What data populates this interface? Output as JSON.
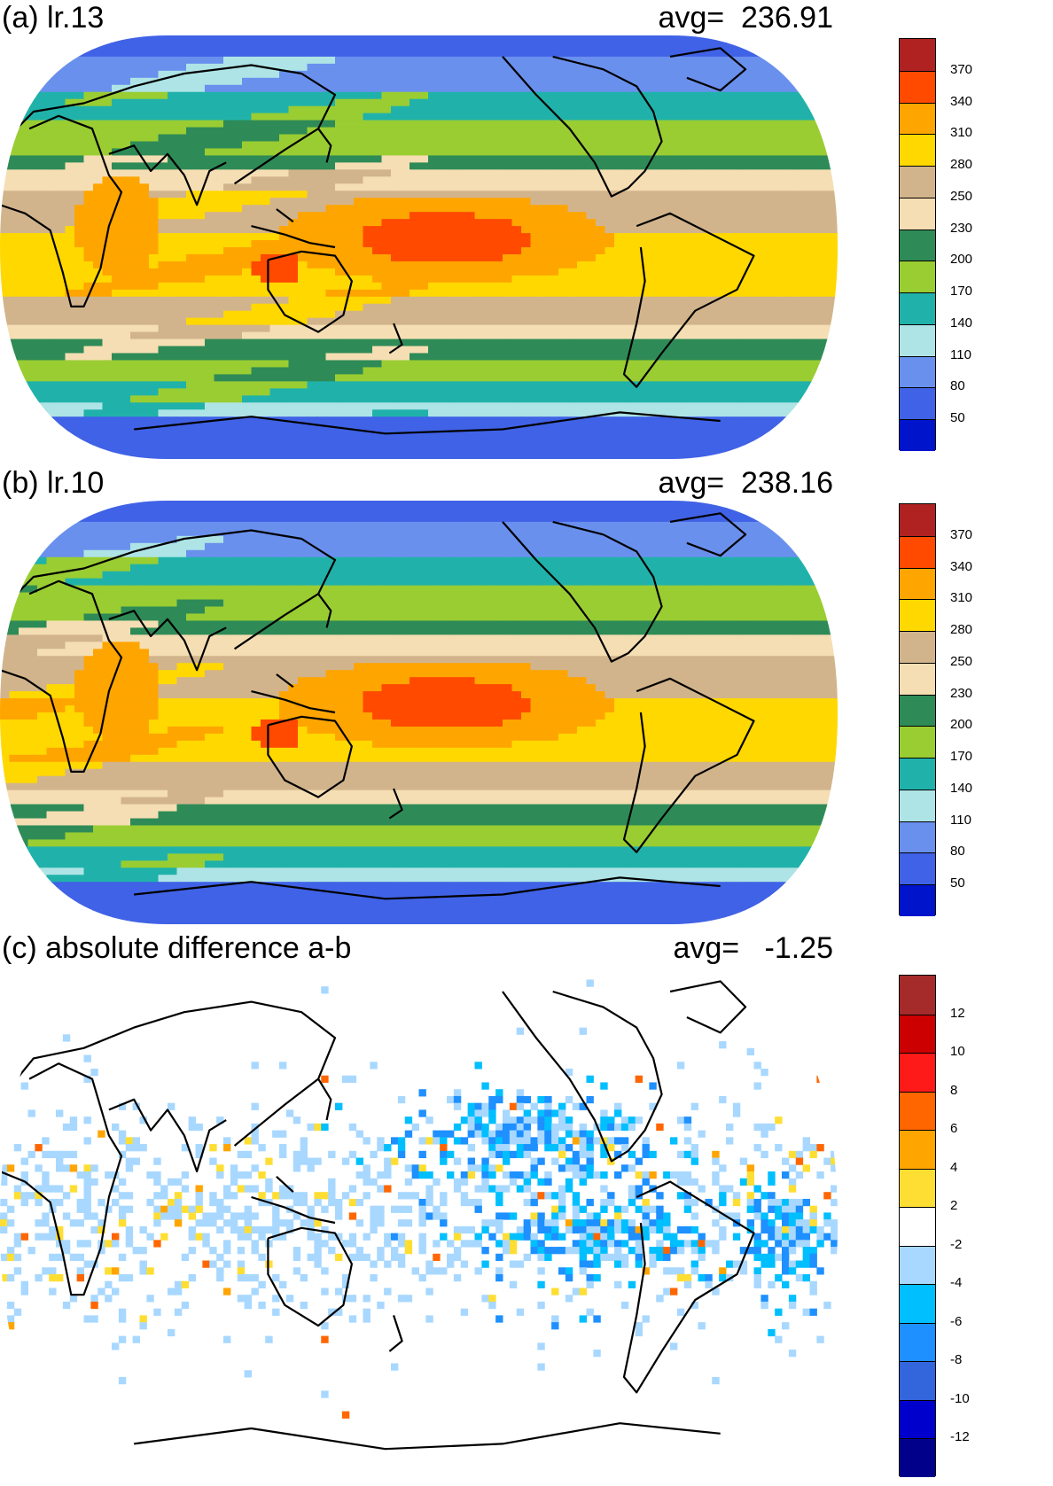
{
  "panels": [
    {
      "id": "a",
      "title": "(a) lr.13",
      "avg_text": "avg=  236.91",
      "colorbar": {
        "labels": [
          "370",
          "340",
          "310",
          "280",
          "250",
          "230",
          "200",
          "170",
          "140",
          "110",
          "80",
          "50"
        ],
        "colors": [
          "#b02222",
          "#ff4a00",
          "#ffa500",
          "#ffd800",
          "#d2b48c",
          "#f5deb3",
          "#2e8b57",
          "#9acd32",
          "#20b2aa",
          "#aee4e6",
          "#6a90ee",
          "#4062e6",
          "#0014cc"
        ]
      }
    },
    {
      "id": "b",
      "title": "(b) lr.10",
      "avg_text": "avg=  238.16",
      "colorbar": {
        "labels": [
          "370",
          "340",
          "310",
          "280",
          "250",
          "230",
          "200",
          "170",
          "140",
          "110",
          "80",
          "50"
        ],
        "colors": [
          "#b02222",
          "#ff4a00",
          "#ffa500",
          "#ffd800",
          "#d2b48c",
          "#f5deb3",
          "#2e8b57",
          "#9acd32",
          "#20b2aa",
          "#aee4e6",
          "#6a90ee",
          "#4062e6",
          "#0014cc"
        ]
      }
    },
    {
      "id": "c",
      "title": "(c) absolute difference a-b",
      "avg_text": "avg=   -1.25",
      "colorbar": {
        "labels": [
          "12",
          "10",
          "8",
          "6",
          "4",
          "2",
          "-2",
          "-4",
          "-6",
          "-8",
          "-10",
          "-12"
        ],
        "colors": [
          "#a52a2a",
          "#cc0000",
          "#ff1a1a",
          "#ff6600",
          "#ffa500",
          "#ffde33",
          "#ffffff",
          "#a8d8ff",
          "#00bfff",
          "#1e90ff",
          "#3366dd",
          "#0000cc",
          "#00008b"
        ]
      }
    }
  ]
}
